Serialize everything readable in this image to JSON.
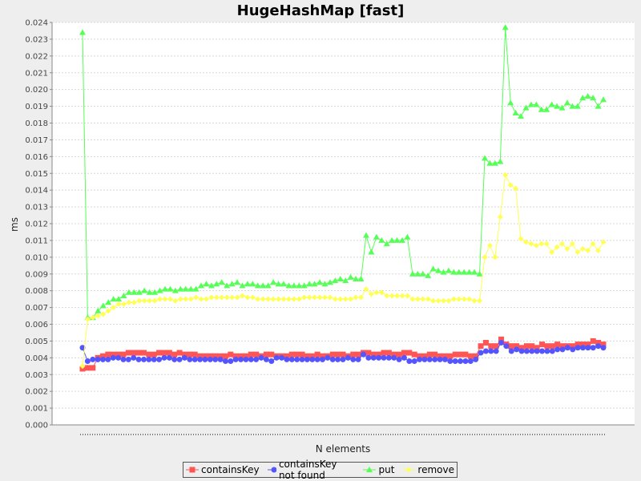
{
  "chart_data": {
    "type": "line",
    "title": "HugeHashMap [fast]",
    "xlabel": "N elements",
    "ylabel": "ms",
    "ylim": [
      0,
      0.024
    ],
    "y_ticks": [
      "0.000",
      "0.001",
      "0.002",
      "0.003",
      "0.004",
      "0.005",
      "0.006",
      "0.007",
      "0.008",
      "0.009",
      "0.010",
      "0.011",
      "0.012",
      "0.013",
      "0.014",
      "0.015",
      "0.016",
      "0.017",
      "0.018",
      "0.019",
      "0.020",
      "0.021",
      "0.022",
      "0.023",
      "0.024"
    ],
    "grid": true,
    "legend_position": "bottom",
    "series": [
      {
        "name": "containsKey",
        "color": "#ff5555",
        "marker": "square",
        "values": [
          0.00335,
          0.0034,
          0.0034,
          0.004,
          0.0041,
          0.0042,
          0.0042,
          0.0042,
          0.0042,
          0.0043,
          0.0043,
          0.0043,
          0.0043,
          0.0042,
          0.0042,
          0.0043,
          0.0043,
          0.0043,
          0.0042,
          0.0043,
          0.0042,
          0.0042,
          0.0042,
          0.0041,
          0.0041,
          0.0041,
          0.0041,
          0.0041,
          0.0041,
          0.0042,
          0.0041,
          0.0041,
          0.0041,
          0.0042,
          0.0042,
          0.0041,
          0.0042,
          0.0042,
          0.0041,
          0.0041,
          0.0041,
          0.0042,
          0.0042,
          0.0042,
          0.0041,
          0.0041,
          0.0042,
          0.0041,
          0.0041,
          0.0042,
          0.0042,
          0.0042,
          0.0041,
          0.0042,
          0.0042,
          0.0043,
          0.0043,
          0.0042,
          0.0042,
          0.0043,
          0.0043,
          0.0042,
          0.0042,
          0.0043,
          0.0043,
          0.0042,
          0.0041,
          0.0041,
          0.0042,
          0.0042,
          0.0041,
          0.0041,
          0.0041,
          0.0042,
          0.0042,
          0.0042,
          0.0041,
          0.0041,
          0.0047,
          0.0049,
          0.0047,
          0.0047,
          0.0051,
          0.0048,
          0.0047,
          0.0047,
          0.0046,
          0.0047,
          0.0047,
          0.0046,
          0.0048,
          0.0047,
          0.0047,
          0.0048,
          0.0047,
          0.0047,
          0.0047,
          0.0048,
          0.0048,
          0.0048,
          0.005,
          0.0049,
          0.0048
        ]
      },
      {
        "name": "containsKey not found",
        "color": "#5555ff",
        "marker": "circle",
        "values": [
          0.0046,
          0.0038,
          0.0039,
          0.0039,
          0.0039,
          0.0039,
          0.004,
          0.004,
          0.0039,
          0.0039,
          0.004,
          0.0039,
          0.0039,
          0.0039,
          0.0039,
          0.0039,
          0.004,
          0.004,
          0.0039,
          0.0039,
          0.004,
          0.0039,
          0.0039,
          0.0039,
          0.0039,
          0.0039,
          0.0039,
          0.0039,
          0.0038,
          0.0038,
          0.0039,
          0.0039,
          0.0039,
          0.0039,
          0.0039,
          0.004,
          0.0039,
          0.0038,
          0.004,
          0.004,
          0.0039,
          0.0039,
          0.0039,
          0.0039,
          0.0039,
          0.0039,
          0.0039,
          0.0039,
          0.004,
          0.0039,
          0.0039,
          0.0039,
          0.004,
          0.0039,
          0.0039,
          0.0042,
          0.004,
          0.004,
          0.004,
          0.004,
          0.004,
          0.004,
          0.0039,
          0.004,
          0.0038,
          0.0038,
          0.0039,
          0.0039,
          0.0039,
          0.0039,
          0.0039,
          0.0039,
          0.0038,
          0.0038,
          0.0038,
          0.0038,
          0.0038,
          0.0039,
          0.0043,
          0.0044,
          0.0044,
          0.0044,
          0.0049,
          0.0047,
          0.0044,
          0.0045,
          0.0044,
          0.0044,
          0.0044,
          0.0044,
          0.0044,
          0.0044,
          0.0044,
          0.0045,
          0.0045,
          0.0046,
          0.0045,
          0.0046,
          0.0046,
          0.0046,
          0.0046,
          0.0047,
          0.0046
        ]
      },
      {
        "name": "put",
        "color": "#55ff55",
        "marker": "triangle",
        "values": [
          0.0234,
          0.0064,
          0.0064,
          0.0068,
          0.0071,
          0.0073,
          0.0075,
          0.0075,
          0.0077,
          0.0079,
          0.0079,
          0.0079,
          0.008,
          0.0079,
          0.0079,
          0.008,
          0.0081,
          0.0081,
          0.008,
          0.0081,
          0.0081,
          0.0081,
          0.0081,
          0.0083,
          0.0084,
          0.0083,
          0.0084,
          0.0085,
          0.0083,
          0.0084,
          0.0085,
          0.0083,
          0.0084,
          0.0084,
          0.0083,
          0.0083,
          0.0083,
          0.0085,
          0.0084,
          0.0084,
          0.0083,
          0.0083,
          0.0083,
          0.0083,
          0.0084,
          0.0084,
          0.0085,
          0.0084,
          0.0085,
          0.0086,
          0.0087,
          0.0086,
          0.0088,
          0.0087,
          0.0087,
          0.0113,
          0.0103,
          0.0112,
          0.011,
          0.0108,
          0.011,
          0.011,
          0.011,
          0.0112,
          0.009,
          0.009,
          0.009,
          0.0089,
          0.0093,
          0.0092,
          0.0091,
          0.0092,
          0.0091,
          0.0091,
          0.0091,
          0.0091,
          0.0091,
          0.009,
          0.0159,
          0.0156,
          0.0156,
          0.0157,
          0.0237,
          0.0192,
          0.0186,
          0.0184,
          0.0189,
          0.0191,
          0.0191,
          0.0188,
          0.0188,
          0.0191,
          0.019,
          0.0189,
          0.0192,
          0.019,
          0.019,
          0.0195,
          0.0196,
          0.0195,
          0.019,
          0.0194
        ]
      },
      {
        "name": "remove",
        "color": "#ffff55",
        "marker": "diamond",
        "values": [
          0.0035,
          0.0063,
          0.0064,
          0.0065,
          0.0066,
          0.0068,
          0.007,
          0.0072,
          0.0072,
          0.0073,
          0.0073,
          0.0074,
          0.0074,
          0.0074,
          0.0074,
          0.0075,
          0.0075,
          0.0075,
          0.0074,
          0.0075,
          0.0075,
          0.0075,
          0.0076,
          0.0075,
          0.0075,
          0.0076,
          0.0076,
          0.0076,
          0.0076,
          0.0076,
          0.0076,
          0.0077,
          0.0076,
          0.0076,
          0.0075,
          0.0075,
          0.0075,
          0.0075,
          0.0075,
          0.0075,
          0.0075,
          0.0075,
          0.0075,
          0.0076,
          0.0076,
          0.0076,
          0.0076,
          0.0076,
          0.0076,
          0.0075,
          0.0075,
          0.0075,
          0.0075,
          0.0076,
          0.0076,
          0.0081,
          0.0078,
          0.0079,
          0.0079,
          0.0077,
          0.0077,
          0.0077,
          0.0077,
          0.0077,
          0.0075,
          0.0075,
          0.0075,
          0.0075,
          0.0074,
          0.0074,
          0.0074,
          0.0074,
          0.0075,
          0.0075,
          0.0075,
          0.0075,
          0.0074,
          0.0074,
          0.01,
          0.0107,
          0.01,
          0.0124,
          0.0149,
          0.0143,
          0.0141,
          0.0111,
          0.0109,
          0.0108,
          0.0107,
          0.0108,
          0.0108,
          0.0103,
          0.0106,
          0.0108,
          0.0105,
          0.0108,
          0.0103,
          0.0105,
          0.0104,
          0.0108,
          0.0104,
          0.0109
        ]
      }
    ]
  }
}
